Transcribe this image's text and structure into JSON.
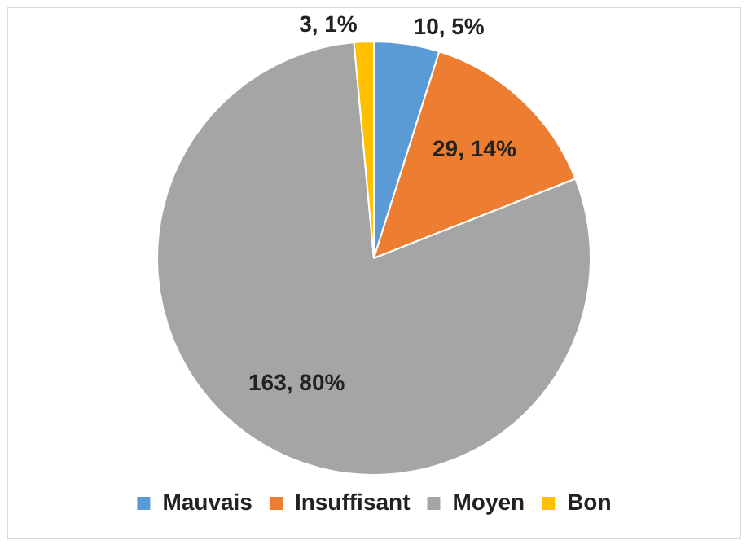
{
  "chart_data": {
    "type": "pie",
    "categories": [
      "Mauvais",
      "Insuffisant",
      "Moyen",
      "Bon"
    ],
    "values": [
      10,
      29,
      163,
      3
    ],
    "colors": [
      "#5b9bd5",
      "#ed7d31",
      "#a5a5a5",
      "#ffc000"
    ],
    "value_labels": [
      "10, 5%",
      "29, 14%",
      "163, 80%",
      "3, 1%"
    ],
    "legend": "bottom"
  }
}
